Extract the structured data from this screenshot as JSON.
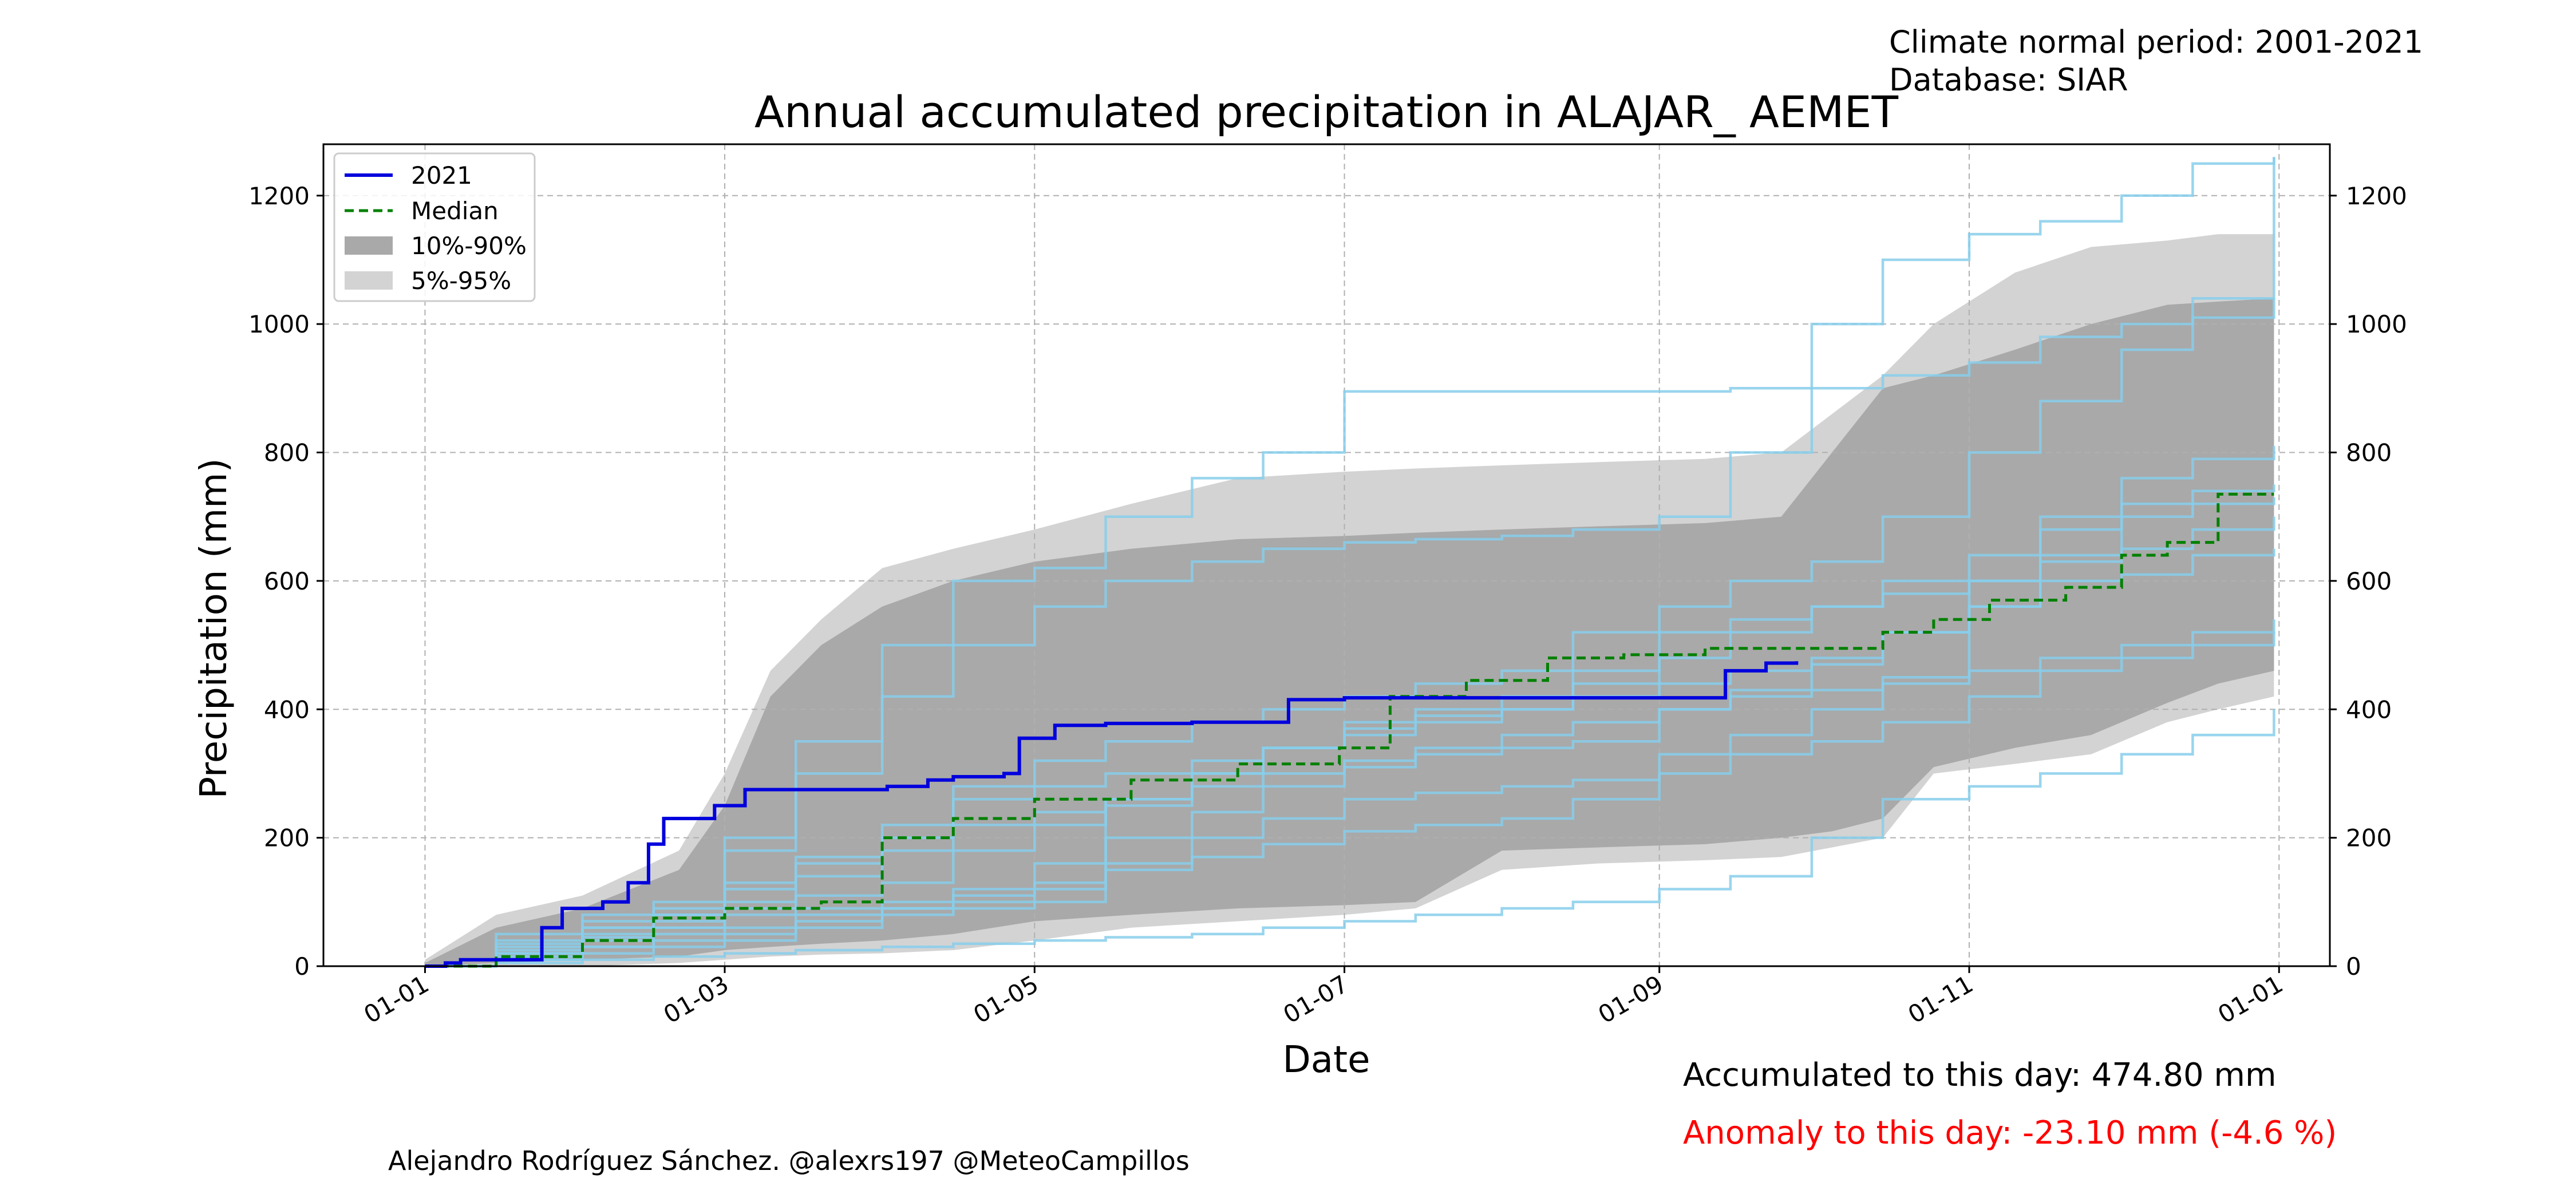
{
  "header": {
    "normal_period": "Climate normal period: 2001-2021",
    "database": "Database: SIAR"
  },
  "footer": {
    "credit": "Alejandro Rodríguez Sánchez. @alexrs197 @MeteoCampillos",
    "accumulated": "Accumulated to this day: 474.80 mm",
    "anomaly": "Anomaly to this day: -23.10 mm (-4.6 %)"
  },
  "colors": {
    "current": "#0000dd",
    "median": "#008000",
    "band_10_90": "#a9a9a9",
    "band_5_95": "#d3d3d3",
    "years": "#87ceeb",
    "anomaly": "#ff0000",
    "grid": "#b0b0b0"
  },
  "chart_data": {
    "type": "line",
    "title": "Annual accumulated precipitation in ALAJAR_ AEMET",
    "xlabel": "Date",
    "ylabel": "Precipitation (mm)",
    "xlim": [
      "2020-12-12",
      "2022-01-11"
    ],
    "ylim": [
      0,
      1280
    ],
    "x_ticks": [
      {
        "date": "2021-01-01",
        "label": "01-01"
      },
      {
        "date": "2021-03-01",
        "label": "01-03"
      },
      {
        "date": "2021-05-01",
        "label": "01-05"
      },
      {
        "date": "2021-07-01",
        "label": "01-07"
      },
      {
        "date": "2021-09-01",
        "label": "01-09"
      },
      {
        "date": "2021-11-01",
        "label": "01-11"
      },
      {
        "date": "2022-01-01",
        "label": "01-01"
      }
    ],
    "y_ticks": [
      0,
      200,
      400,
      600,
      800,
      1000,
      1200
    ],
    "grid": true,
    "legend_position": "top-left",
    "legend": [
      "2021",
      "Median",
      "10%-90%",
      "5%-95%"
    ],
    "bands": [
      {
        "name": "5%-95%",
        "x": [
          "2021-01-01",
          "2021-01-15",
          "2021-02-01",
          "2021-02-20",
          "2021-03-01",
          "2021-03-10",
          "2021-03-20",
          "2021-04-01",
          "2021-04-15",
          "2021-05-01",
          "2021-05-20",
          "2021-06-10",
          "2021-07-01",
          "2021-07-15",
          "2021-08-01",
          "2021-08-20",
          "2021-09-10",
          "2021-09-25",
          "2021-10-05",
          "2021-10-15",
          "2021-10-25",
          "2021-11-10",
          "2021-11-25",
          "2021-12-10",
          "2021-12-20",
          "2021-12-31"
        ],
        "lower": [
          0,
          0,
          0,
          5,
          10,
          15,
          18,
          20,
          25,
          40,
          60,
          70,
          80,
          90,
          150,
          160,
          165,
          170,
          185,
          200,
          300,
          315,
          330,
          380,
          400,
          420
        ],
        "upper": [
          10,
          80,
          110,
          180,
          300,
          460,
          540,
          620,
          650,
          680,
          720,
          760,
          770,
          775,
          780,
          785,
          790,
          800,
          860,
          920,
          1000,
          1080,
          1120,
          1130,
          1140,
          1140
        ]
      },
      {
        "name": "10%-90%",
        "x": [
          "2021-01-01",
          "2021-01-15",
          "2021-02-01",
          "2021-02-20",
          "2021-03-01",
          "2021-03-10",
          "2021-03-20",
          "2021-04-01",
          "2021-04-15",
          "2021-05-01",
          "2021-05-20",
          "2021-06-10",
          "2021-07-01",
          "2021-07-15",
          "2021-08-01",
          "2021-08-20",
          "2021-09-10",
          "2021-09-25",
          "2021-10-05",
          "2021-10-15",
          "2021-10-25",
          "2021-11-10",
          "2021-11-25",
          "2021-12-10",
          "2021-12-20",
          "2021-12-31"
        ],
        "lower": [
          0,
          5,
          10,
          15,
          25,
          30,
          35,
          40,
          50,
          70,
          80,
          90,
          95,
          100,
          180,
          185,
          190,
          200,
          210,
          230,
          310,
          340,
          360,
          410,
          440,
          460
        ],
        "upper": [
          5,
          60,
          90,
          150,
          250,
          420,
          500,
          560,
          600,
          630,
          650,
          665,
          670,
          675,
          680,
          685,
          690,
          700,
          800,
          900,
          920,
          960,
          1000,
          1030,
          1035,
          1040
        ]
      }
    ],
    "series": [
      {
        "name": "2021",
        "x": [
          "2021-01-01",
          "2021-01-05",
          "2021-01-08",
          "2021-01-20",
          "2021-01-24",
          "2021-01-28",
          "2021-02-05",
          "2021-02-10",
          "2021-02-14",
          "2021-02-17",
          "2021-02-20",
          "2021-02-27",
          "2021-03-01",
          "2021-03-05",
          "2021-03-15",
          "2021-03-25",
          "2021-04-02",
          "2021-04-10",
          "2021-04-15",
          "2021-04-25",
          "2021-04-28",
          "2021-05-05",
          "2021-05-15",
          "2021-06-01",
          "2021-06-15",
          "2021-06-20",
          "2021-07-01",
          "2021-08-01",
          "2021-09-01",
          "2021-09-14",
          "2021-09-22",
          "2021-09-28"
        ],
        "y": [
          0,
          5,
          10,
          10,
          60,
          90,
          100,
          130,
          190,
          230,
          230,
          250,
          250,
          275,
          275,
          275,
          280,
          290,
          295,
          300,
          355,
          375,
          378,
          380,
          380,
          415,
          418,
          418,
          418,
          460,
          472,
          474.8
        ]
      },
      {
        "name": "Median",
        "x": [
          "2021-01-01",
          "2021-01-15",
          "2021-02-01",
          "2021-02-15",
          "2021-03-01",
          "2021-03-20",
          "2021-04-01",
          "2021-04-15",
          "2021-05-01",
          "2021-05-20",
          "2021-06-10",
          "2021-06-30",
          "2021-07-10",
          "2021-07-25",
          "2021-08-10",
          "2021-08-25",
          "2021-09-10",
          "2021-10-01",
          "2021-10-15",
          "2021-10-25",
          "2021-11-05",
          "2021-11-20",
          "2021-12-01",
          "2021-12-10",
          "2021-12-20",
          "2021-12-31"
        ],
        "y": [
          0,
          15,
          40,
          75,
          90,
          100,
          200,
          230,
          260,
          290,
          315,
          340,
          420,
          445,
          480,
          485,
          495,
          495,
          520,
          540,
          570,
          590,
          640,
          660,
          735,
          735
        ]
      }
    ],
    "historical_years": [
      {
        "y": [
          0,
          10,
          30,
          60,
          130,
          160,
          200,
          280,
          320,
          350,
          380,
          400,
          420,
          440,
          460,
          520,
          560,
          600,
          630,
          700,
          800,
          880,
          960,
          1040,
          1260
        ]
      },
      {
        "y": [
          0,
          40,
          80,
          100,
          200,
          350,
          500,
          600,
          620,
          700,
          760,
          800,
          895,
          895,
          895,
          895,
          895,
          900,
          1000,
          1100,
          1140,
          1160,
          1200,
          1250,
          1260
        ]
      },
      {
        "y": [
          0,
          20,
          40,
          50,
          60,
          80,
          90,
          100,
          120,
          160,
          200,
          230,
          260,
          270,
          280,
          290,
          330,
          360,
          400,
          450,
          560,
          640,
          700,
          720,
          730
        ]
      },
      {
        "y": [
          0,
          5,
          10,
          15,
          20,
          25,
          30,
          35,
          40,
          45,
          50,
          60,
          70,
          80,
          90,
          100,
          120,
          140,
          200,
          260,
          280,
          300,
          330,
          360,
          400
        ]
      },
      {
        "y": [
          0,
          30,
          60,
          80,
          90,
          110,
          130,
          180,
          220,
          260,
          300,
          340,
          380,
          400,
          420,
          460,
          520,
          540,
          560,
          580,
          600,
          630,
          650,
          680,
          700
        ]
      },
      {
        "y": [
          0,
          20,
          50,
          70,
          80,
          90,
          100,
          120,
          160,
          200,
          240,
          280,
          310,
          330,
          340,
          350,
          400,
          420,
          430,
          440,
          460,
          480,
          500,
          520,
          540
        ]
      },
      {
        "y": [
          0,
          50,
          70,
          90,
          180,
          300,
          420,
          500,
          560,
          600,
          630,
          650,
          660,
          665,
          670,
          680,
          700,
          800,
          900,
          920,
          940,
          980,
          1000,
          1010,
          1040
        ]
      },
      {
        "y": [
          0,
          10,
          20,
          30,
          40,
          60,
          80,
          90,
          100,
          250,
          300,
          340,
          370,
          390,
          400,
          420,
          440,
          460,
          480,
          520,
          600,
          700,
          760,
          790,
          810
        ]
      },
      {
        "y": [
          0,
          25,
          45,
          60,
          100,
          140,
          180,
          220,
          240,
          260,
          280,
          300,
          320,
          340,
          360,
          380,
          400,
          430,
          470,
          520,
          560,
          600,
          610,
          640,
          650
        ]
      },
      {
        "y": [
          0,
          15,
          30,
          40,
          50,
          70,
          90,
          110,
          130,
          150,
          170,
          190,
          210,
          220,
          230,
          260,
          300,
          330,
          350,
          380,
          420,
          460,
          480,
          500,
          520
        ]
      },
      {
        "y": [
          0,
          35,
          60,
          80,
          120,
          170,
          220,
          260,
          280,
          300,
          320,
          340,
          360,
          380,
          400,
          440,
          480,
          520,
          560,
          600,
          640,
          680,
          720,
          740,
          750
        ]
      }
    ],
    "historical_x": [
      "2021-01-01",
      "2021-01-15",
      "2021-02-01",
      "2021-02-15",
      "2021-03-01",
      "2021-03-15",
      "2021-04-01",
      "2021-04-15",
      "2021-05-01",
      "2021-05-15",
      "2021-06-01",
      "2021-06-15",
      "2021-07-01",
      "2021-07-15",
      "2021-08-01",
      "2021-08-15",
      "2021-09-01",
      "2021-09-15",
      "2021-10-01",
      "2021-10-15",
      "2021-11-01",
      "2021-11-15",
      "2021-12-01",
      "2021-12-15",
      "2021-12-31"
    ]
  }
}
